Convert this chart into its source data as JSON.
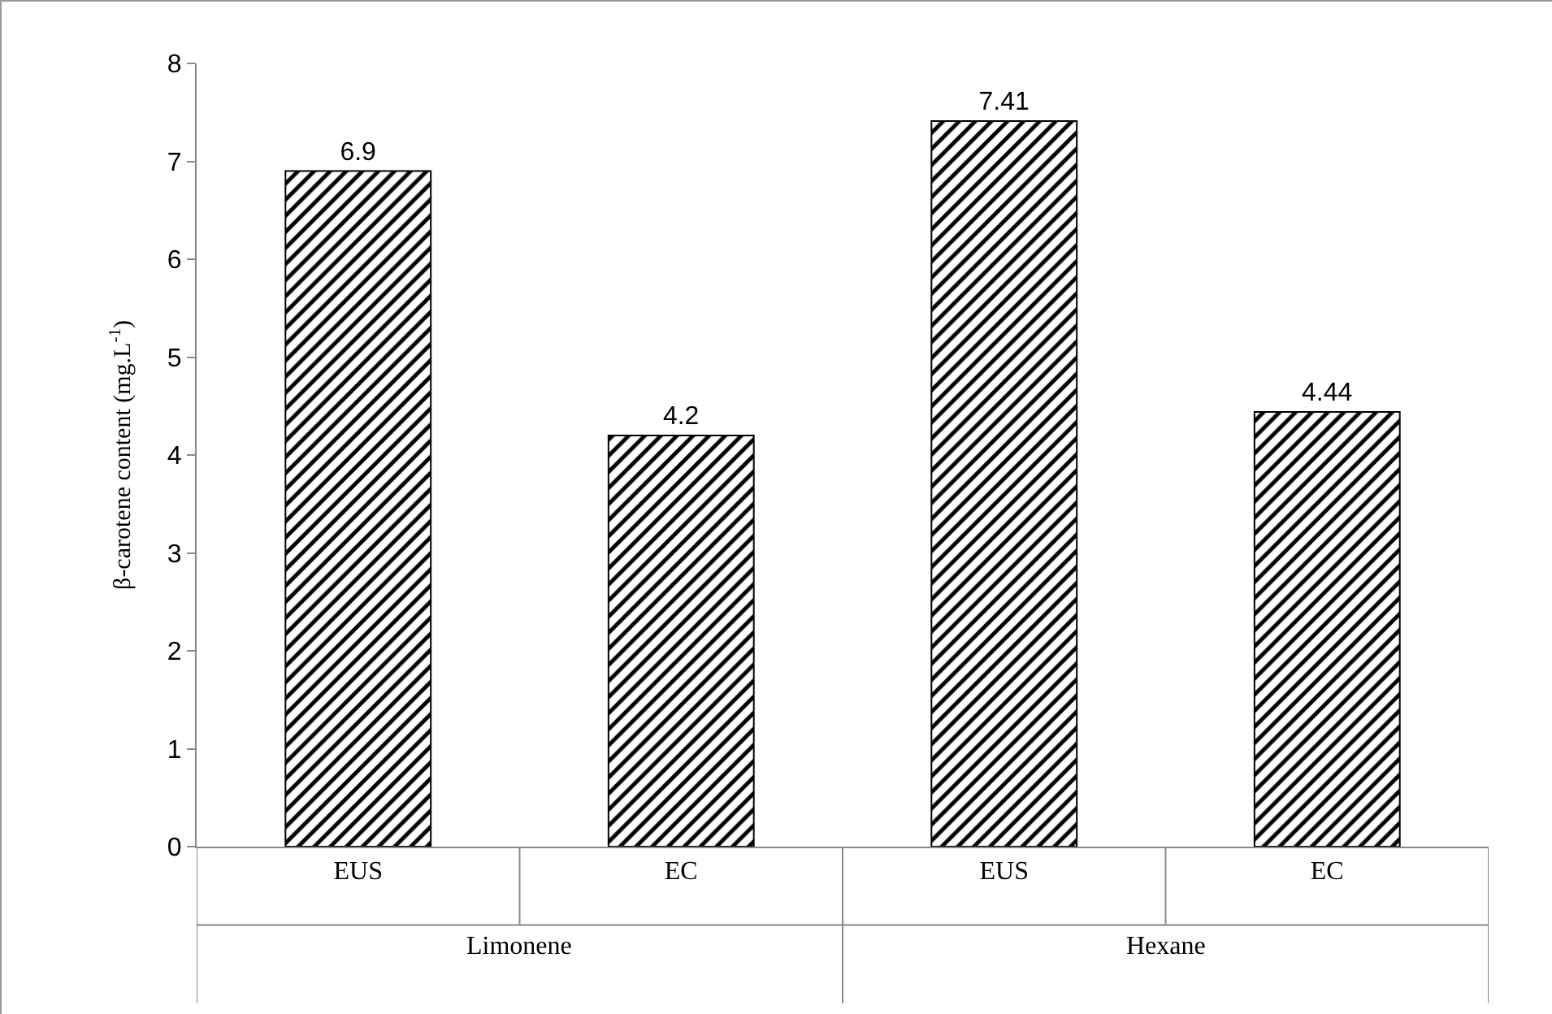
{
  "chart_data": {
    "type": "bar",
    "ylabel": "β-carotene content (mg.L$^{-1}$)",
    "categories": [
      "EUS",
      "EC",
      "EUS",
      "EC"
    ],
    "values": [
      6.9,
      4.2,
      7.41,
      4.44
    ],
    "color": "#000000",
    "ylim": [
      0,
      8
    ],
    "yticks": [
      0,
      1,
      2,
      3,
      4,
      5,
      6,
      7,
      8
    ],
    "grid": false,
    "data_labels": true,
    "annotations": [
      "Limonene",
      "Hexane"
    ]
  }
}
